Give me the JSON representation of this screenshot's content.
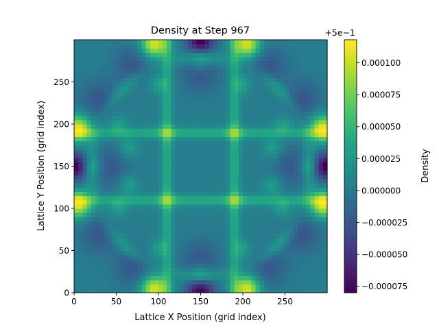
{
  "chart_data": {
    "type": "heatmap",
    "title": "Density at Step 967",
    "xlabel": "Lattice X Position (grid index)",
    "ylabel": "Lattice Y Position (grid index)",
    "xlim": [
      0,
      300
    ],
    "ylim": [
      0,
      300
    ],
    "x_ticks": [
      0,
      50,
      100,
      150,
      200,
      250
    ],
    "y_ticks": [
      0,
      50,
      100,
      150,
      200,
      250
    ],
    "colormap": "viridis",
    "colorbar": {
      "label": "Density",
      "offset_label": "+5e−1",
      "range": [
        -8e-05,
        0.000118
      ],
      "ticks": [
        -7.5e-05,
        -5e-05,
        -2.5e-05,
        0.0,
        2.5e-05,
        5e-05,
        7.5e-05,
        0.0001
      ],
      "tick_labels": [
        "−0.000075",
        "−0.000050",
        "−0.000025",
        "0.000000",
        "0.000025",
        "0.000050",
        "0.000075",
        "0.000100"
      ]
    },
    "grid": false,
    "pattern": "symmetric interference lattice: bright ridges near x,y ≈ 110 and 190, diagonal ring of peaks, dark minima at edge midpoints (x≈0 or 300, y≈150; y≈0 or 300, x≈150), bright peaks near (95,300),(205,300),(0,105),(300,195)"
  }
}
